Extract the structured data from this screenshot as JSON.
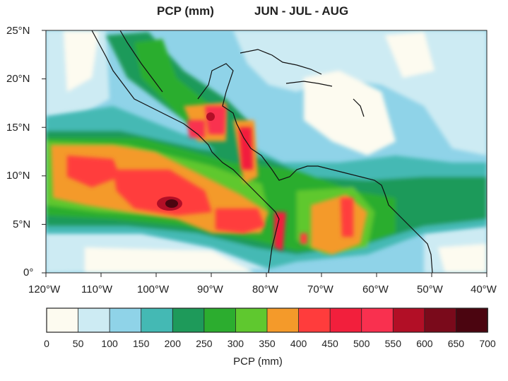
{
  "header": {
    "variable_label": "PCP (mm)",
    "season_label": "JUN - JUL - AUG"
  },
  "map": {
    "lat_labels": [
      "25°N",
      "20°N",
      "15°N",
      "10°N",
      "5°N",
      "0°"
    ],
    "lon_labels": [
      "120°W",
      "110°W",
      "100°W",
      "90°W",
      "80°W",
      "70°W",
      "60°W",
      "50°W",
      "40°W"
    ]
  },
  "colorbar": {
    "title": "PCP (mm)",
    "tick_labels": [
      "0",
      "50",
      "100",
      "150",
      "200",
      "250",
      "300",
      "350",
      "400",
      "450",
      "500",
      "550",
      "600",
      "650",
      "700"
    ],
    "colors": [
      "#fdfbf0",
      "#cdebf3",
      "#8fd3e8",
      "#44b9b4",
      "#1e9a5a",
      "#2cad2f",
      "#5fc82f",
      "#f49a2a",
      "#ff3c3c",
      "#f21f3c",
      "#f9304f",
      "#b20f26",
      "#7a0a1b",
      "#4b0510"
    ]
  }
}
